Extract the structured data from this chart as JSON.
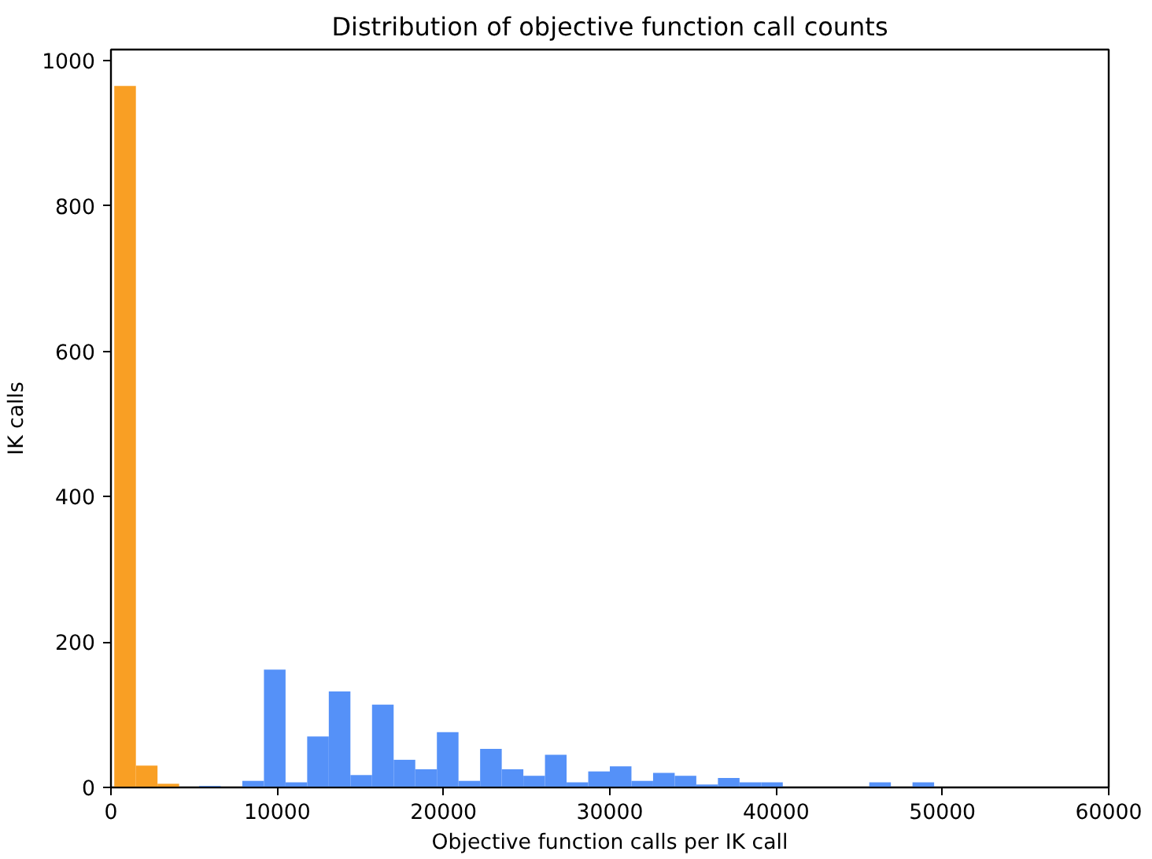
{
  "chart_data": {
    "type": "histogram",
    "title": "Distribution of objective function call counts",
    "xlabel": "Objective function calls per IK call",
    "ylabel": "IK calls",
    "bins": [
      200,
      1500,
      2800,
      4100,
      5300,
      6600,
      7900,
      9200,
      10500,
      11800,
      13100,
      14400,
      15700,
      17000,
      18300,
      19600,
      20900,
      22200,
      23500,
      24800,
      26100,
      27400,
      28700,
      30000,
      31300,
      32600,
      33900,
      35200,
      36500,
      37800,
      39100,
      40400,
      41700,
      43000,
      44300,
      45600,
      46900,
      48200,
      49500,
      50800,
      52100,
      53400,
      54700,
      56000,
      57300
    ],
    "series": [
      {
        "color": "#f99f24",
        "values": [
          965,
          30,
          5,
          null,
          null,
          null,
          null,
          null,
          null,
          null,
          null,
          null,
          null,
          null,
          null,
          null,
          null,
          null,
          null,
          null,
          null,
          null,
          null,
          null,
          null,
          null,
          null,
          null,
          null,
          null,
          null,
          null,
          null,
          null,
          null,
          null,
          null,
          null,
          null,
          null,
          null,
          null,
          null,
          null
        ]
      },
      {
        "color": "#5591f8",
        "values": [
          null,
          null,
          null,
          null,
          2,
          0,
          9,
          162,
          7,
          70,
          132,
          17,
          114,
          38,
          25,
          76,
          9,
          53,
          25,
          16,
          45,
          7,
          22,
          29,
          9,
          20,
          16,
          4,
          13,
          7,
          7,
          1,
          1,
          1,
          1,
          7,
          1,
          7,
          1,
          1,
          1,
          1,
          0,
          1
        ]
      }
    ],
    "xlim": [
      0,
      60000
    ],
    "xticks": [
      0,
      10000,
      20000,
      30000,
      40000,
      50000,
      60000
    ],
    "ylim": [
      0,
      1015
    ],
    "yticks": [
      0,
      200,
      400,
      600,
      800,
      1000
    ],
    "grid": false
  }
}
